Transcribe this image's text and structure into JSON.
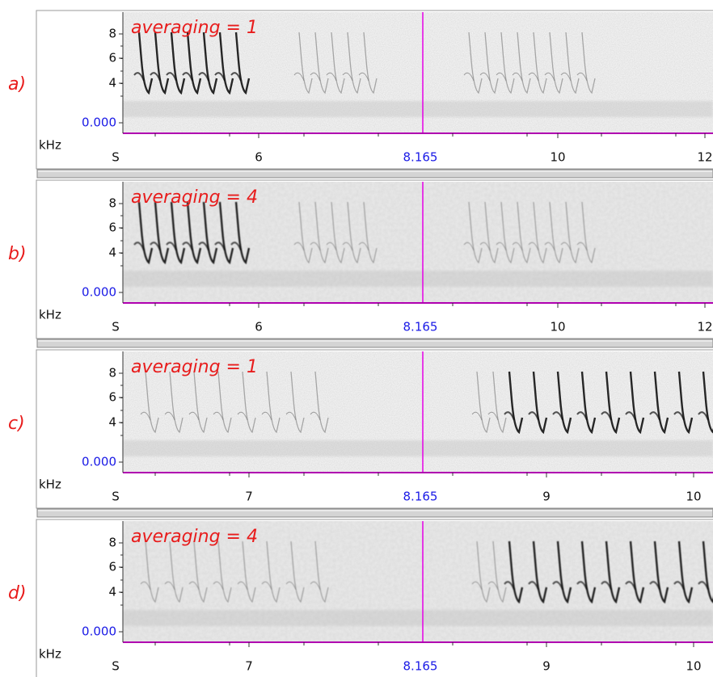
{
  "panels": [
    {
      "label": "a)",
      "annotation": "averaging = 1",
      "y_labels": [
        "8",
        "6",
        "4",
        "0.000"
      ],
      "y_unit": "kHz",
      "x_labels": [
        "S",
        "6",
        "8.165",
        "10",
        "12"
      ]
    },
    {
      "label": "b)",
      "annotation": "averaging = 4",
      "y_labels": [
        "8",
        "6",
        "4",
        "0.000"
      ],
      "y_unit": "kHz",
      "x_labels": [
        "S",
        "6",
        "8.165",
        "10",
        "12"
      ]
    },
    {
      "label": "c)",
      "annotation": "averaging = 1",
      "y_labels": [
        "8",
        "6",
        "4",
        "0.000"
      ],
      "y_unit": "kHz",
      "x_labels": [
        "S",
        "7",
        "8.165",
        "9",
        "10"
      ]
    },
    {
      "label": "d)",
      "annotation": "averaging = 4",
      "y_labels": [
        "8",
        "6",
        "4",
        "0.000"
      ],
      "y_unit": "kHz",
      "x_labels": [
        "S",
        "7",
        "8.165",
        "9",
        "10"
      ]
    }
  ]
}
